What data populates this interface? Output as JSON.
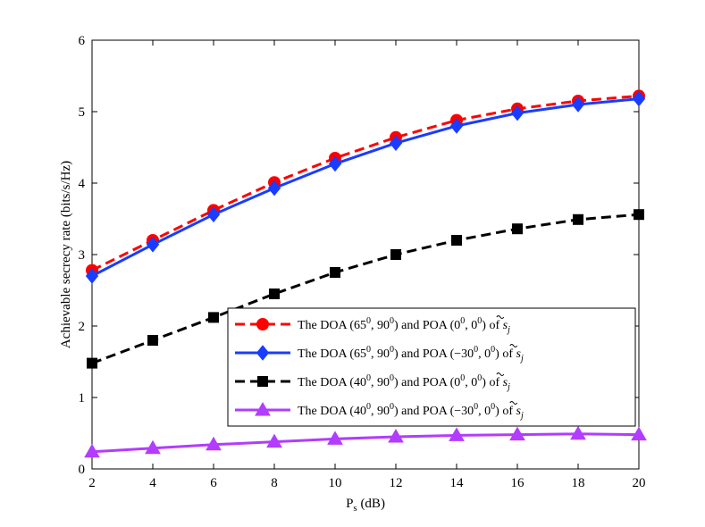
{
  "chart_data": {
    "type": "line",
    "title": "",
    "xlabel": "P",
    "xlabel_sub": "s",
    "xlabel_unit": " (dB)",
    "ylabel": "Achievable secrecy rate (bits/s/Hz)",
    "x": [
      2,
      4,
      6,
      8,
      10,
      12,
      14,
      16,
      18,
      20
    ],
    "xlim": [
      2,
      20
    ],
    "ylim": [
      0,
      6
    ],
    "xticks": [
      2,
      4,
      6,
      8,
      10,
      12,
      14,
      16,
      18,
      20
    ],
    "yticks": [
      0,
      1,
      2,
      3,
      4,
      5,
      6
    ],
    "grid": false,
    "legend_position": "lower-right",
    "series": [
      {
        "name": "The DOA (65⁰, 90⁰) and POA (0⁰, 0⁰) of s̃ⱼ",
        "legend_parts": [
          "The DOA (65",
          "0",
          ", 90",
          "0",
          ") and POA (0",
          "0",
          ", 0",
          "0",
          ") of "
        ],
        "color": "#ff0000",
        "line_style": "dashed",
        "marker": "circle",
        "values": [
          2.78,
          3.2,
          3.62,
          4.01,
          4.35,
          4.64,
          4.88,
          5.04,
          5.15,
          5.22
        ]
      },
      {
        "name": "The DOA (65⁰, 90⁰) and POA (−30⁰, 0⁰) of s̃ⱼ",
        "legend_parts": [
          "The DOA (65",
          "0",
          ", 90",
          "0",
          ") and POA (−30",
          "0",
          ", 0",
          "0",
          ") of "
        ],
        "color": "#1a3cff",
        "line_style": "solid",
        "marker": "diamond",
        "values": [
          2.7,
          3.14,
          3.56,
          3.93,
          4.27,
          4.56,
          4.8,
          4.98,
          5.1,
          5.18
        ]
      },
      {
        "name": "The DOA (40⁰, 90⁰) and POA (0⁰, 0⁰) of s̃ⱼ",
        "legend_parts": [
          "The DOA (40",
          "0",
          ", 90",
          "0",
          ") and POA (0",
          "0",
          ", 0",
          "0",
          ") of "
        ],
        "color": "#000000",
        "line_style": "dashed",
        "marker": "square",
        "values": [
          1.48,
          1.8,
          2.12,
          2.45,
          2.75,
          3.0,
          3.2,
          3.36,
          3.49,
          3.56
        ]
      },
      {
        "name": "The DOA (40⁰, 90⁰) and POA (−30⁰, 0⁰) of s̃ⱼ",
        "legend_parts": [
          "The DOA (40",
          "0",
          ", 90",
          "0",
          ") and POA (−30",
          "0",
          ", 0",
          "0",
          ") of "
        ],
        "color": "#b23cff",
        "line_style": "solid",
        "marker": "triangle",
        "values": [
          0.24,
          0.29,
          0.34,
          0.38,
          0.42,
          0.45,
          0.47,
          0.48,
          0.49,
          0.48
        ]
      }
    ],
    "legend_suffix": "s",
    "legend_suffix_sub": "j"
  }
}
